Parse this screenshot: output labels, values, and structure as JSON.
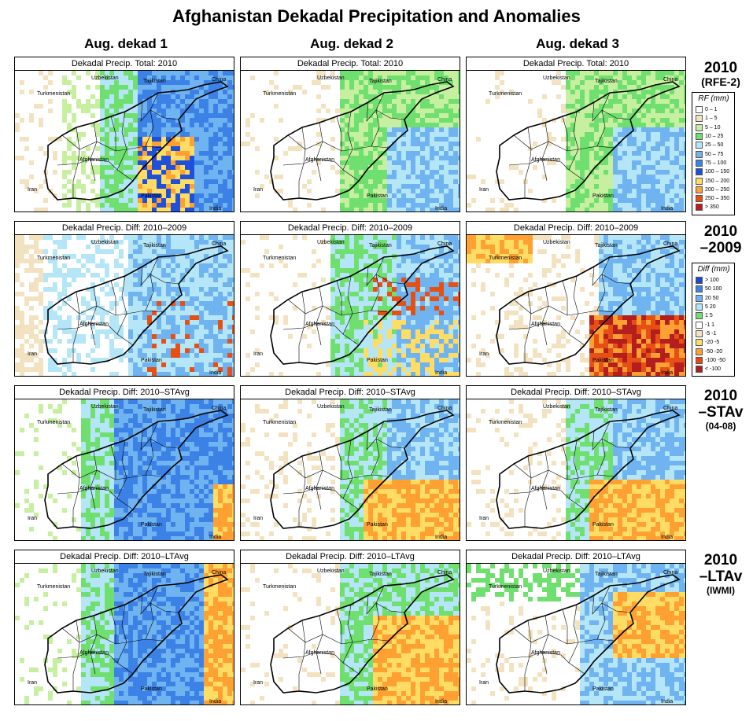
{
  "title": "Afghanistan Dekadal Precipitation and Anomalies",
  "columns": [
    "Aug. dekad 1",
    "Aug. dekad 2",
    "Aug. dekad 3"
  ],
  "rows": [
    {
      "heading": [
        "2010",
        "(RFE-2)"
      ],
      "panel_title": "Dekadal Precip. Total: 2010"
    },
    {
      "heading": [
        "2010",
        "–2009"
      ],
      "panel_title": "Dekadal Precip. Diff:  2010–2009"
    },
    {
      "heading": [
        "2010",
        "–STAv",
        "(04-08)"
      ],
      "panel_title": "Dekadal Precip. Diff:  2010–STAvg"
    },
    {
      "heading": [
        "2010",
        "–LTAv",
        "(IWMI)"
      ],
      "panel_title": "Dekadal Precip. Diff:  2010–LTAvg"
    }
  ],
  "country_labels": [
    "Uzbekistan",
    "Tajikistan",
    "China",
    "Turkmenistan",
    "Afghanistan",
    "Iran",
    "Pakistan",
    "India"
  ],
  "legend_rf": {
    "title": "RF (mm)",
    "items": [
      {
        "label": "0 – 1",
        "color": "#ffffff"
      },
      {
        "label": "1 – 5",
        "color": "#f3e2c0"
      },
      {
        "label": "5 – 10",
        "color": "#c6f0a0"
      },
      {
        "label": "10 – 25",
        "color": "#6fe06f"
      },
      {
        "label": "25 – 50",
        "color": "#b4e6f8"
      },
      {
        "label": "50 – 75",
        "color": "#6fb4f0"
      },
      {
        "label": "75 – 100",
        "color": "#3c82e6"
      },
      {
        "label": "100 – 150",
        "color": "#1e50dc"
      },
      {
        "label": "150 – 200",
        "color": "#ffdc64"
      },
      {
        "label": "200 – 250",
        "color": "#ffa032"
      },
      {
        "label": "250 – 350",
        "color": "#e65014"
      },
      {
        "label": "> 350",
        "color": "#b41e1e"
      }
    ]
  },
  "legend_diff": {
    "title": "Diff (mm)",
    "items": [
      {
        "label": "> 100",
        "color": "#1e46d2"
      },
      {
        "label": "50  100",
        "color": "#3c82e6"
      },
      {
        "label": "20  50",
        "color": "#6fb4f0"
      },
      {
        "label": "5  20",
        "color": "#b4e6f8"
      },
      {
        "label": "1  5",
        "color": "#6fe06f"
      },
      {
        "label": "-1  1",
        "color": "#ffffff"
      },
      {
        "label": "-5  -1",
        "color": "#f3e2c0"
      },
      {
        "label": "-20  -5",
        "color": "#ffdc64"
      },
      {
        "label": "-50  -20",
        "color": "#ffa032"
      },
      {
        "label": "-100  -50",
        "color": "#e64614"
      },
      {
        "label": "< -100",
        "color": "#aa1e1e"
      }
    ]
  },
  "palette": {
    "white": "#ffffff",
    "tan": "#f3e2c0",
    "lightgreen": "#c6f0a0",
    "green": "#6fe06f",
    "lightblue": "#b4e6f8",
    "blue": "#6fb4f0",
    "midblue": "#3c82e6",
    "darkblue": "#1e50dc",
    "yellow": "#ffdc64",
    "orange": "#ffa032",
    "red": "#e65014",
    "darkred": "#b41e1e"
  }
}
